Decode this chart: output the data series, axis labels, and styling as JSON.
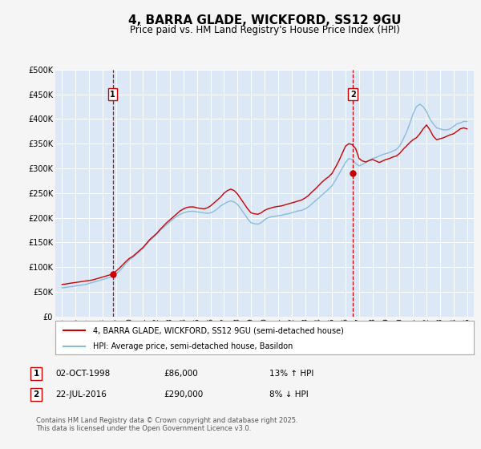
{
  "title": "4, BARRA GLADE, WICKFORD, SS12 9GU",
  "subtitle": "Price paid vs. HM Land Registry's House Price Index (HPI)",
  "title_fontsize": 11,
  "subtitle_fontsize": 8.5,
  "bg_color": "#f5f5f5",
  "plot_bg_color": "#dce8f5",
  "grid_color": "#ffffff",
  "legend_label_red": "4, BARRA GLADE, WICKFORD, SS12 9GU (semi-detached house)",
  "legend_label_blue": "HPI: Average price, semi-detached house, Basildon",
  "event1_date": 1998.75,
  "event1_label": "1",
  "event1_date_str": "02-OCT-1998",
  "event1_price": "£86,000",
  "event1_hpi": "13% ↑ HPI",
  "event2_date": 2016.55,
  "event2_label": "2",
  "event2_date_str": "22-JUL-2016",
  "event2_price": "£290,000",
  "event2_hpi": "8% ↓ HPI",
  "ylim": [
    0,
    500000
  ],
  "xlim": [
    1994.5,
    2025.5
  ],
  "ylabel_ticks": [
    0,
    50000,
    100000,
    150000,
    200000,
    250000,
    300000,
    350000,
    400000,
    450000,
    500000
  ],
  "ytick_labels": [
    "£0",
    "£50K",
    "£100K",
    "£150K",
    "£200K",
    "£250K",
    "£300K",
    "£350K",
    "£400K",
    "£450K",
    "£500K"
  ],
  "xtick_years": [
    1995,
    1996,
    1997,
    1998,
    1999,
    2000,
    2001,
    2002,
    2003,
    2004,
    2005,
    2006,
    2007,
    2008,
    2009,
    2010,
    2011,
    2012,
    2013,
    2014,
    2015,
    2016,
    2017,
    2018,
    2019,
    2020,
    2021,
    2022,
    2023,
    2024,
    2025
  ],
  "red_color": "#cc0000",
  "blue_color": "#88bbdd",
  "event_marker_color": "#cc0000",
  "event1_marker_value": 86000,
  "event2_marker_value": 290000,
  "footnote": "Contains HM Land Registry data © Crown copyright and database right 2025.\nThis data is licensed under the Open Government Licence v3.0.",
  "red_x": [
    1995.0,
    1995.3,
    1995.5,
    1995.75,
    1996.0,
    1996.25,
    1996.5,
    1996.75,
    1997.0,
    1997.25,
    1997.5,
    1997.75,
    1998.0,
    1998.25,
    1998.5,
    1998.75,
    1999.0,
    1999.25,
    1999.5,
    1999.75,
    2000.0,
    2000.25,
    2000.5,
    2000.75,
    2001.0,
    2001.25,
    2001.5,
    2001.75,
    2002.0,
    2002.25,
    2002.5,
    2002.75,
    2003.0,
    2003.25,
    2003.5,
    2003.75,
    2004.0,
    2004.25,
    2004.5,
    2004.75,
    2005.0,
    2005.25,
    2005.5,
    2005.75,
    2006.0,
    2006.25,
    2006.5,
    2006.75,
    2007.0,
    2007.25,
    2007.5,
    2007.75,
    2008.0,
    2008.25,
    2008.5,
    2008.75,
    2009.0,
    2009.25,
    2009.5,
    2009.75,
    2010.0,
    2010.25,
    2010.5,
    2010.75,
    2011.0,
    2011.25,
    2011.5,
    2011.75,
    2012.0,
    2012.25,
    2012.5,
    2012.75,
    2013.0,
    2013.25,
    2013.5,
    2013.75,
    2014.0,
    2014.25,
    2014.5,
    2014.75,
    2015.0,
    2015.25,
    2015.5,
    2015.75,
    2016.0,
    2016.25,
    2016.5,
    2016.75,
    2017.0,
    2017.25,
    2017.5,
    2017.75,
    2018.0,
    2018.25,
    2018.5,
    2018.75,
    2019.0,
    2019.25,
    2019.5,
    2019.75,
    2020.0,
    2020.25,
    2020.5,
    2020.75,
    2021.0,
    2021.25,
    2021.5,
    2021.75,
    2022.0,
    2022.25,
    2022.5,
    2022.75,
    2023.0,
    2023.25,
    2023.5,
    2023.75,
    2024.0,
    2024.25,
    2024.5,
    2024.75,
    2025.0
  ],
  "red_y": [
    65000,
    66000,
    67000,
    68000,
    69000,
    70000,
    71000,
    72000,
    73000,
    74000,
    76000,
    78000,
    80000,
    82000,
    84000,
    86000,
    92000,
    98000,
    105000,
    112000,
    118000,
    122000,
    128000,
    134000,
    140000,
    148000,
    156000,
    162000,
    168000,
    176000,
    183000,
    190000,
    196000,
    202000,
    208000,
    214000,
    218000,
    221000,
    222000,
    222000,
    220000,
    219000,
    218000,
    220000,
    224000,
    230000,
    236000,
    242000,
    250000,
    255000,
    258000,
    255000,
    248000,
    238000,
    228000,
    218000,
    210000,
    208000,
    207000,
    210000,
    215000,
    218000,
    220000,
    222000,
    223000,
    224000,
    226000,
    228000,
    230000,
    232000,
    234000,
    236000,
    240000,
    245000,
    252000,
    258000,
    265000,
    272000,
    278000,
    283000,
    290000,
    302000,
    315000,
    330000,
    345000,
    350000,
    348000,
    340000,
    320000,
    315000,
    313000,
    316000,
    318000,
    315000,
    312000,
    315000,
    318000,
    320000,
    323000,
    325000,
    330000,
    338000,
    345000,
    352000,
    358000,
    362000,
    370000,
    380000,
    388000,
    378000,
    365000,
    358000,
    360000,
    362000,
    365000,
    368000,
    370000,
    375000,
    380000,
    382000,
    380000
  ],
  "blue_x": [
    1995.0,
    1995.3,
    1995.5,
    1995.75,
    1996.0,
    1996.25,
    1996.5,
    1996.75,
    1997.0,
    1997.25,
    1997.5,
    1997.75,
    1998.0,
    1998.25,
    1998.5,
    1998.75,
    1999.0,
    1999.25,
    1999.5,
    1999.75,
    2000.0,
    2000.25,
    2000.5,
    2000.75,
    2001.0,
    2001.25,
    2001.5,
    2001.75,
    2002.0,
    2002.25,
    2002.5,
    2002.75,
    2003.0,
    2003.25,
    2003.5,
    2003.75,
    2004.0,
    2004.25,
    2004.5,
    2004.75,
    2005.0,
    2005.25,
    2005.5,
    2005.75,
    2006.0,
    2006.25,
    2006.5,
    2006.75,
    2007.0,
    2007.25,
    2007.5,
    2007.75,
    2008.0,
    2008.25,
    2008.5,
    2008.75,
    2009.0,
    2009.25,
    2009.5,
    2009.75,
    2010.0,
    2010.25,
    2010.5,
    2010.75,
    2011.0,
    2011.25,
    2011.5,
    2011.75,
    2012.0,
    2012.25,
    2012.5,
    2012.75,
    2013.0,
    2013.25,
    2013.5,
    2013.75,
    2014.0,
    2014.25,
    2014.5,
    2014.75,
    2015.0,
    2015.25,
    2015.5,
    2015.75,
    2016.0,
    2016.25,
    2016.5,
    2016.75,
    2017.0,
    2017.25,
    2017.5,
    2017.75,
    2018.0,
    2018.25,
    2018.5,
    2018.75,
    2019.0,
    2019.25,
    2019.5,
    2019.75,
    2020.0,
    2020.25,
    2020.5,
    2020.75,
    2021.0,
    2021.25,
    2021.5,
    2021.75,
    2022.0,
    2022.25,
    2022.5,
    2022.75,
    2023.0,
    2023.25,
    2023.5,
    2023.75,
    2024.0,
    2024.25,
    2024.5,
    2024.75,
    2025.0
  ],
  "blue_y": [
    58000,
    59000,
    60000,
    61000,
    62000,
    63000,
    64000,
    65000,
    67000,
    69000,
    71000,
    73000,
    75000,
    77000,
    79000,
    81000,
    86000,
    92000,
    100000,
    108000,
    115000,
    120000,
    126000,
    132000,
    138000,
    146000,
    154000,
    160000,
    167000,
    174000,
    180000,
    186000,
    192000,
    198000,
    203000,
    207000,
    210000,
    212000,
    213000,
    213000,
    212000,
    211000,
    210000,
    209000,
    210000,
    213000,
    218000,
    224000,
    228000,
    232000,
    234000,
    232000,
    227000,
    218000,
    208000,
    198000,
    190000,
    188000,
    187000,
    190000,
    196000,
    200000,
    202000,
    203000,
    204000,
    205000,
    207000,
    208000,
    210000,
    212000,
    214000,
    215000,
    218000,
    222000,
    228000,
    234000,
    240000,
    246000,
    252000,
    258000,
    265000,
    276000,
    288000,
    300000,
    312000,
    320000,
    318000,
    310000,
    305000,
    308000,
    312000,
    316000,
    320000,
    322000,
    325000,
    328000,
    330000,
    332000,
    335000,
    338000,
    345000,
    358000,
    372000,
    390000,
    410000,
    425000,
    430000,
    425000,
    415000,
    400000,
    390000,
    382000,
    380000,
    378000,
    378000,
    380000,
    385000,
    390000,
    392000,
    395000,
    395000
  ]
}
